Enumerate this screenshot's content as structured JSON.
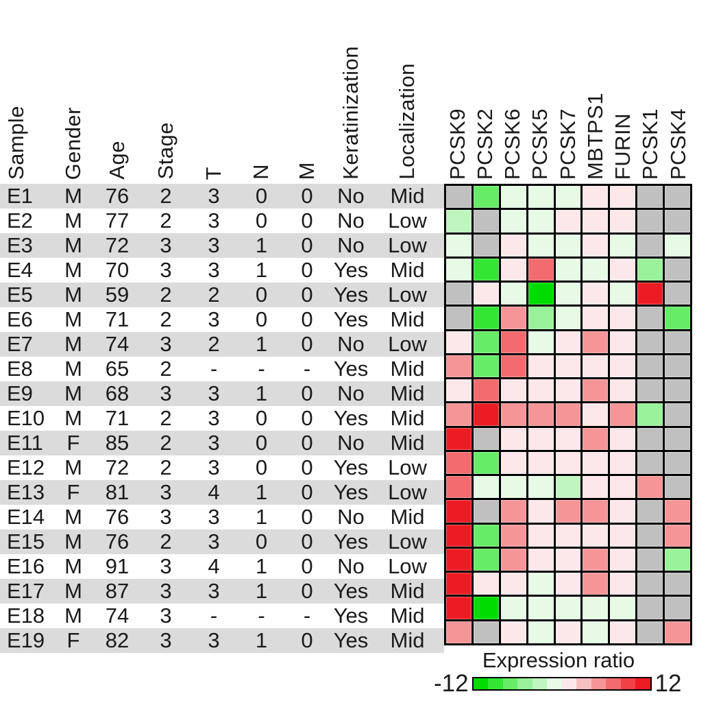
{
  "figure": {
    "background": "#FFFFFF",
    "text_color": "#1A1A1A",
    "stripe_color": "#DBDBDB",
    "grid_line_color": "#000000"
  },
  "table": {
    "columns": [
      "Sample",
      "Gender",
      "Age",
      "Stage",
      "T",
      "N",
      "M",
      "Keratinization",
      "Localization"
    ],
    "rows": [
      [
        "E1",
        "M",
        "76",
        "2",
        "3",
        "0",
        "0",
        "No",
        "Mid"
      ],
      [
        "E2",
        "M",
        "77",
        "2",
        "3",
        "0",
        "0",
        "No",
        "Low"
      ],
      [
        "E3",
        "M",
        "72",
        "3",
        "3",
        "1",
        "0",
        "No",
        "Low"
      ],
      [
        "E4",
        "M",
        "70",
        "3",
        "3",
        "1",
        "0",
        "Yes",
        "Mid"
      ],
      [
        "E5",
        "M",
        "59",
        "2",
        "2",
        "0",
        "0",
        "Yes",
        "Low"
      ],
      [
        "E6",
        "M",
        "71",
        "2",
        "3",
        "0",
        "0",
        "Yes",
        "Mid"
      ],
      [
        "E7",
        "M",
        "74",
        "3",
        "2",
        "1",
        "0",
        "No",
        "Low"
      ],
      [
        "E8",
        "M",
        "65",
        "2",
        "-",
        "-",
        "-",
        "Yes",
        "Mid"
      ],
      [
        "E9",
        "M",
        "68",
        "3",
        "3",
        "1",
        "0",
        "No",
        "Mid"
      ],
      [
        "E10",
        "M",
        "71",
        "2",
        "3",
        "0",
        "0",
        "Yes",
        "Mid"
      ],
      [
        "E11",
        "F",
        "85",
        "2",
        "3",
        "0",
        "0",
        "No",
        "Mid"
      ],
      [
        "E12",
        "M",
        "72",
        "2",
        "3",
        "0",
        "0",
        "Yes",
        "Low"
      ],
      [
        "E13",
        "F",
        "81",
        "3",
        "4",
        "1",
        "0",
        "Yes",
        "Low"
      ],
      [
        "E14",
        "M",
        "76",
        "3",
        "3",
        "1",
        "0",
        "No",
        "Mid"
      ],
      [
        "E15",
        "M",
        "76",
        "2",
        "3",
        "0",
        "0",
        "Yes",
        "Low"
      ],
      [
        "E16",
        "M",
        "91",
        "3",
        "4",
        "1",
        "0",
        "No",
        "Low"
      ],
      [
        "E17",
        "M",
        "87",
        "3",
        "3",
        "1",
        "0",
        "Yes",
        "Mid"
      ],
      [
        "E18",
        "M",
        "74",
        "3",
        "-",
        "-",
        "-",
        "Yes",
        "Mid"
      ],
      [
        "E19",
        "F",
        "82",
        "3",
        "3",
        "1",
        "0",
        "Yes",
        "Mid"
      ]
    ]
  },
  "chart_data": {
    "type": "heatmap",
    "genes": [
      "PCSK9",
      "PCSK2",
      "PCSK6",
      "PCSK5",
      "PCSK7",
      "MBTPS1",
      "FURIN",
      "PCSK1",
      "PCSK4"
    ],
    "samples": [
      "E1",
      "E2",
      "E3",
      "E4",
      "E5",
      "E6",
      "E7",
      "E8",
      "E9",
      "E10",
      "E11",
      "E12",
      "E13",
      "E14",
      "E15",
      "E16",
      "E17",
      "E18",
      "E19"
    ],
    "values": [
      [
        null,
        -7,
        -1,
        -1,
        -1,
        1,
        1,
        null,
        null
      ],
      [
        -3,
        null,
        -1,
        -1,
        1,
        1,
        1,
        null,
        null
      ],
      [
        -1,
        null,
        1,
        -1,
        -1,
        1,
        -1,
        null,
        -1
      ],
      [
        -1,
        -9,
        1,
        7,
        -1,
        -1,
        1,
        -5,
        null
      ],
      [
        null,
        1,
        -1,
        -11,
        -1,
        1,
        -1,
        11,
        null
      ],
      [
        null,
        -9,
        5,
        -5,
        -1,
        1,
        1,
        null,
        -7
      ],
      [
        1,
        -7,
        7,
        -1,
        1,
        5,
        1,
        null,
        null
      ],
      [
        5,
        -7,
        7,
        1,
        1,
        1,
        1,
        null,
        null
      ],
      [
        1,
        7,
        1,
        1,
        1,
        5,
        1,
        null,
        null
      ],
      [
        5,
        11,
        5,
        5,
        5,
        1,
        5,
        -5,
        null
      ],
      [
        11,
        null,
        1,
        1,
        1,
        5,
        1,
        null,
        null
      ],
      [
        7,
        -7,
        1,
        1,
        1,
        1,
        1,
        null,
        null
      ],
      [
        7,
        -1,
        -1,
        -1,
        -3,
        1,
        1,
        5,
        null
      ],
      [
        11,
        null,
        5,
        1,
        5,
        5,
        1,
        null,
        5
      ],
      [
        11,
        -7,
        5,
        1,
        1,
        1,
        1,
        null,
        5
      ],
      [
        11,
        -7,
        5,
        1,
        1,
        5,
        1,
        null,
        -5
      ],
      [
        11,
        1,
        1,
        -1,
        1,
        5,
        1,
        null,
        null
      ],
      [
        11,
        -11,
        -1,
        -1,
        -1,
        -1,
        -1,
        null,
        null
      ],
      [
        5,
        null,
        1,
        -1,
        1,
        -1,
        1,
        null,
        5
      ]
    ],
    "value_range": [
      -12,
      12
    ],
    "missing_color": "#C0C0C0",
    "colormap_steps": [
      "#00DC00",
      "#33E633",
      "#66EC66",
      "#99F199",
      "#BFF5BF",
      "#E6FAE6",
      "#FCE8EA",
      "#F8BFC1",
      "#F59598",
      "#F26B6F",
      "#EF4146",
      "#ED1C24"
    ],
    "legend": {
      "title": "Expression ratio",
      "min_label": "-12",
      "max_label": "12"
    }
  }
}
